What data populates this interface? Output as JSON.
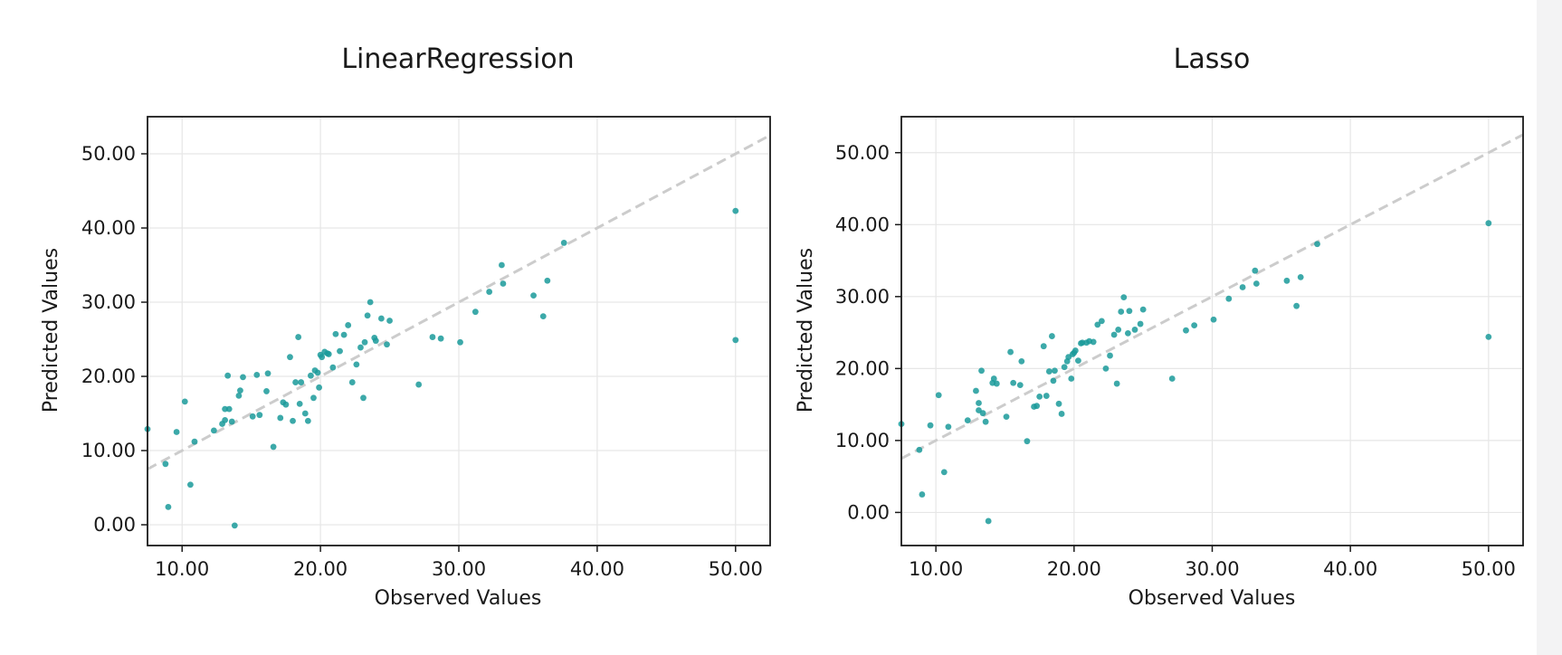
{
  "colors": {
    "point": "#1a9a9a",
    "reference_line": "#cccccc",
    "grid": "#e6e6e6",
    "frame": "#1a1a1a"
  },
  "chart_data": [
    {
      "type": "scatter",
      "title": "LinearRegression",
      "xlabel": "Observed Values",
      "ylabel": "Predicted Values",
      "xlim": [
        7.5,
        52.5
      ],
      "ylim": [
        -2.8,
        55.0
      ],
      "xticks": [
        10,
        20,
        30,
        40,
        50
      ],
      "yticks": [
        0,
        10,
        20,
        30,
        40,
        50
      ],
      "xtick_labels": [
        "10.00",
        "20.00",
        "30.00",
        "40.00",
        "50.00"
      ],
      "ytick_labels": [
        "0.00",
        "10.00",
        "20.00",
        "30.00",
        "40.00",
        "50.00"
      ],
      "grid": true,
      "reference_line": "y = x",
      "series": [
        {
          "x": [
            7.5,
            8.8,
            9.0,
            9.6,
            10.2,
            10.6,
            10.9,
            12.3,
            12.9,
            13.1,
            13.1,
            13.3,
            13.4,
            13.6,
            13.8,
            14.1,
            14.2,
            14.4,
            15.1,
            15.4,
            15.6,
            16.1,
            16.2,
            16.6,
            17.1,
            17.3,
            17.5,
            17.8,
            18.0,
            18.2,
            18.4,
            18.5,
            18.6,
            18.9,
            19.1,
            19.3,
            19.5,
            19.6,
            19.8,
            19.9,
            20.0,
            20.1,
            20.3,
            20.5,
            20.6,
            20.9,
            21.1,
            21.4,
            21.7,
            22.0,
            22.3,
            22.6,
            22.9,
            23.1,
            23.2,
            23.4,
            23.6,
            23.9,
            24.0,
            24.4,
            24.8,
            25.0,
            27.1,
            28.1,
            28.7,
            30.1,
            31.2,
            32.2,
            33.1,
            33.2,
            35.4,
            36.1,
            36.4,
            37.6,
            50.0,
            50.0
          ],
          "y": [
            12.9,
            8.2,
            2.4,
            12.5,
            16.6,
            5.4,
            11.2,
            12.7,
            13.6,
            14.1,
            15.6,
            20.1,
            15.6,
            13.9,
            -0.1,
            17.4,
            18.1,
            19.9,
            14.6,
            20.2,
            14.8,
            18.0,
            20.4,
            10.5,
            14.4,
            16.5,
            16.2,
            22.6,
            14.0,
            19.2,
            25.3,
            16.3,
            19.2,
            15.0,
            14.0,
            20.1,
            17.1,
            20.8,
            20.5,
            18.5,
            22.9,
            22.6,
            23.3,
            23.1,
            23.0,
            21.2,
            25.7,
            23.4,
            25.6,
            26.9,
            19.2,
            21.6,
            23.9,
            17.1,
            24.6,
            28.2,
            30.0,
            25.2,
            24.8,
            27.8,
            24.3,
            27.5,
            18.9,
            25.3,
            25.1,
            24.6,
            28.7,
            31.4,
            35.0,
            32.5,
            30.9,
            28.1,
            32.9,
            38.0,
            42.3,
            24.9
          ]
        }
      ]
    },
    {
      "type": "scatter",
      "title": "Lasso",
      "xlabel": "Observed Values",
      "ylabel": "Predicted Values",
      "xlim": [
        7.5,
        52.5
      ],
      "ylim": [
        -4.6,
        55.0
      ],
      "xticks": [
        10,
        20,
        30,
        40,
        50
      ],
      "yticks": [
        0,
        10,
        20,
        30,
        40,
        50
      ],
      "xtick_labels": [
        "10.00",
        "20.00",
        "30.00",
        "40.00",
        "50.00"
      ],
      "ytick_labels": [
        "0.00",
        "10.00",
        "20.00",
        "30.00",
        "40.00",
        "50.00"
      ],
      "grid": true,
      "reference_line": "y = x",
      "series": [
        {
          "x": [
            7.5,
            8.8,
            9.0,
            9.6,
            10.2,
            10.6,
            10.9,
            12.3,
            12.9,
            13.1,
            13.1,
            13.3,
            13.4,
            13.6,
            13.8,
            14.1,
            14.2,
            14.4,
            15.1,
            15.4,
            15.6,
            16.1,
            16.2,
            16.6,
            17.1,
            17.3,
            17.5,
            17.8,
            18.0,
            18.2,
            18.4,
            18.5,
            18.6,
            18.9,
            19.1,
            19.3,
            19.5,
            19.6,
            19.8,
            19.9,
            20.0,
            20.1,
            20.3,
            20.5,
            20.6,
            20.9,
            21.1,
            21.4,
            21.7,
            22.0,
            22.3,
            22.6,
            22.9,
            23.1,
            23.2,
            23.4,
            23.6,
            23.9,
            24.0,
            24.4,
            24.8,
            25.0,
            27.1,
            28.1,
            28.7,
            30.1,
            31.2,
            32.2,
            33.1,
            33.2,
            35.4,
            36.1,
            36.4,
            37.6,
            50.0,
            50.0
          ],
          "y": [
            12.3,
            8.7,
            2.5,
            12.1,
            16.3,
            5.6,
            11.9,
            12.8,
            16.9,
            14.2,
            15.2,
            19.7,
            13.8,
            12.6,
            -1.2,
            18.0,
            18.6,
            17.9,
            13.3,
            22.3,
            18.0,
            17.7,
            21.0,
            9.9,
            14.7,
            14.8,
            16.1,
            23.1,
            16.2,
            19.6,
            24.5,
            18.3,
            19.7,
            15.1,
            13.7,
            20.2,
            21.0,
            21.6,
            18.6,
            22.0,
            22.2,
            22.5,
            21.1,
            23.5,
            23.6,
            23.6,
            23.8,
            23.7,
            26.1,
            26.6,
            20.0,
            21.8,
            24.7,
            17.9,
            25.4,
            27.9,
            29.9,
            24.9,
            28.0,
            25.4,
            26.2,
            28.2,
            18.6,
            25.3,
            26.0,
            26.8,
            29.7,
            31.3,
            33.6,
            31.8,
            32.2,
            28.7,
            32.7,
            37.3,
            40.2,
            24.4
          ]
        }
      ]
    }
  ]
}
